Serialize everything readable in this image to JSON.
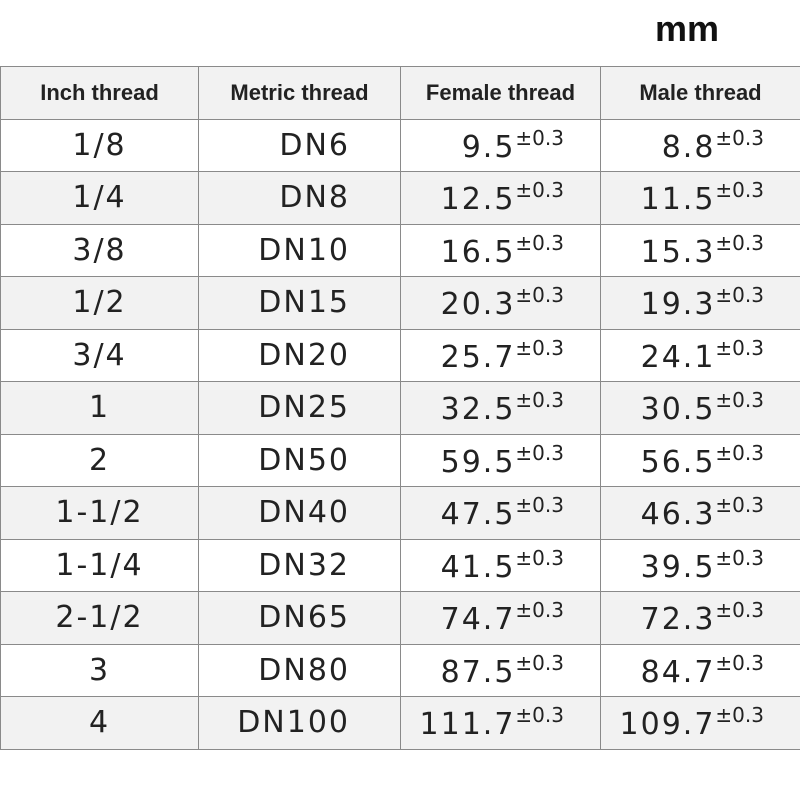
{
  "unit": "mm",
  "table": {
    "headers": [
      "Inch thread",
      "Metric thread",
      "Female thread",
      "Male thread"
    ],
    "rows": [
      {
        "inch": "1/8",
        "metric": "DN6",
        "female": {
          "value": "9.5",
          "tolerance": "±0.3"
        },
        "male": {
          "value": "8.8",
          "tolerance": "±0.3"
        }
      },
      {
        "inch": "1/4",
        "metric": "DN8",
        "female": {
          "value": "12.5",
          "tolerance": "±0.3"
        },
        "male": {
          "value": "11.5",
          "tolerance": "±0.3"
        }
      },
      {
        "inch": "3/8",
        "metric": "DN10",
        "female": {
          "value": "16.5",
          "tolerance": "±0.3"
        },
        "male": {
          "value": "15.3",
          "tolerance": "±0.3"
        }
      },
      {
        "inch": "1/2",
        "metric": "DN15",
        "female": {
          "value": "20.3",
          "tolerance": "±0.3"
        },
        "male": {
          "value": "19.3",
          "tolerance": "±0.3"
        }
      },
      {
        "inch": "3/4",
        "metric": "DN20",
        "female": {
          "value": "25.7",
          "tolerance": "±0.3"
        },
        "male": {
          "value": "24.1",
          "tolerance": "±0.3"
        }
      },
      {
        "inch": "1",
        "metric": "DN25",
        "female": {
          "value": "32.5",
          "tolerance": "±0.3"
        },
        "male": {
          "value": "30.5",
          "tolerance": "±0.3"
        }
      },
      {
        "inch": "2",
        "metric": "DN50",
        "female": {
          "value": "59.5",
          "tolerance": "±0.3"
        },
        "male": {
          "value": "56.5",
          "tolerance": "±0.3"
        }
      },
      {
        "inch": "1-1/2",
        "metric": "DN40",
        "female": {
          "value": "47.5",
          "tolerance": "±0.3"
        },
        "male": {
          "value": "46.3",
          "tolerance": "±0.3"
        }
      },
      {
        "inch": "1-1/4",
        "metric": "DN32",
        "female": {
          "value": "41.5",
          "tolerance": "±0.3"
        },
        "male": {
          "value": "39.5",
          "tolerance": "±0.3"
        }
      },
      {
        "inch": "2-1/2",
        "metric": "DN65",
        "female": {
          "value": "74.7",
          "tolerance": "±0.3"
        },
        "male": {
          "value": "72.3",
          "tolerance": "±0.3"
        }
      },
      {
        "inch": "3",
        "metric": "DN80",
        "female": {
          "value": "87.5",
          "tolerance": "±0.3"
        },
        "male": {
          "value": "84.7",
          "tolerance": "±0.3"
        }
      },
      {
        "inch": "4",
        "metric": "DN100",
        "female": {
          "value": "111.7",
          "tolerance": "±0.3"
        },
        "male": {
          "value": "109.7",
          "tolerance": "±0.3"
        }
      }
    ]
  }
}
